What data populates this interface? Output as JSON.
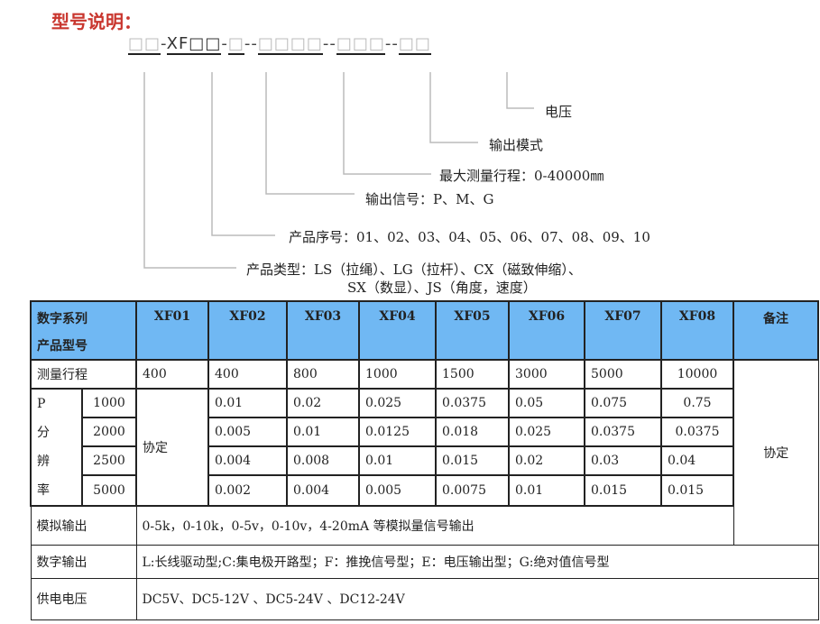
{
  "title": "型号说明：",
  "code": {
    "parts": [
      "□□",
      "-",
      "XF□□",
      "-",
      "□",
      "--",
      "□□□□",
      "--",
      "□□□",
      "--",
      "□□"
    ]
  },
  "labels": {
    "voltage": "电压",
    "output_mode": "输出模式",
    "max_stroke": "最大测量行程：0-40000㎜",
    "output_signal": "输出信号：P、M、G",
    "serial": "产品序号：01、02、03、04、05、06、07、08、09、10",
    "type_line1": "产品类型：LS（拉绳）、LG（拉杆）、CX（磁致伸缩）、",
    "type_line2": "SX（数显）、JS（角度，速度）"
  },
  "table": {
    "header_line1": "数字系列",
    "header_line2": "产品型号",
    "models": [
      "XF01",
      "XF02",
      "XF03",
      "XF04",
      "XF05",
      "XF06",
      "XF07",
      "XF08"
    ],
    "remark_header": "备注",
    "stroke_label": "测量行程",
    "strokes": [
      "400",
      "400",
      "800",
      "1000",
      "1500",
      "3000",
      "5000",
      "10000"
    ],
    "p_label": [
      "P",
      "分",
      "辨",
      "率"
    ],
    "xf01_res": "协定",
    "remark": "协定",
    "res_rows": [
      {
        "p": "1000",
        "values": [
          "0.01",
          "0.02",
          "0.025",
          "0.0375",
          "0.05",
          "0.075",
          "0.75"
        ]
      },
      {
        "p": "2000",
        "values": [
          "0.005",
          "0.01",
          "0.0125",
          "0.018",
          "0.025",
          "0.0375",
          "0.0375"
        ]
      },
      {
        "p": "2500",
        "values": [
          "0.004",
          "0.008",
          "0.01",
          "0.015",
          "0.02",
          "0.03",
          "0.04"
        ]
      },
      {
        "p": "5000",
        "values": [
          "0.002",
          "0.004",
          "0.005",
          "0.0075",
          "0.01",
          "0.015",
          "0.015"
        ]
      }
    ],
    "analog_label": "模拟输出",
    "analog": "0-5k，0-10k，0-5v，0-10v，4-20mA 等模拟量信号输出",
    "digital_label": "数字输出",
    "digital": "L:长线驱动型;C:集电极开路型；F：推挽信号型；E：电压输出型；G:绝对值信号型",
    "power_label": "供电电压",
    "power": "DC5V、DC5-12V 、DC5-24V 、DC12-24V"
  }
}
